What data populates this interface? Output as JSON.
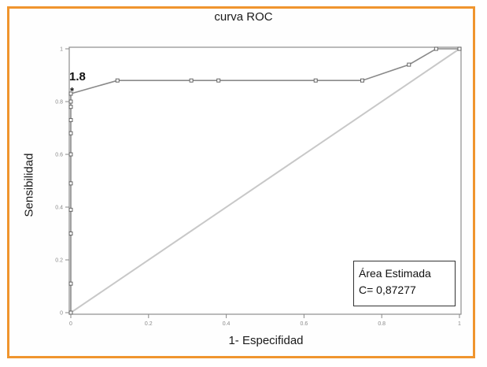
{
  "chart_data": {
    "type": "line",
    "title": "curva ROC",
    "xlabel": "1- Especifidad",
    "ylabel": "Sensibilidad",
    "xlim": [
      0,
      1
    ],
    "ylim": [
      0,
      1
    ],
    "x_ticks": [
      "0",
      "0.2",
      "0.4",
      "0.6",
      "0.8",
      "1"
    ],
    "y_ticks": [
      "0",
      "0.2",
      "0.4",
      "0.6",
      "0.8",
      "1"
    ],
    "series": [
      {
        "x": [
          0,
          0,
          0,
          0,
          0,
          0,
          0,
          0,
          0,
          0,
          0,
          0.12,
          0.31,
          0.38,
          0.63,
          0.75,
          0.87,
          0.94,
          1
        ],
        "y": [
          0,
          0.11,
          0.3,
          0.39,
          0.49,
          0.6,
          0.68,
          0.73,
          0.78,
          0.8,
          0.83,
          0.88,
          0.88,
          0.88,
          0.88,
          0.88,
          0.94,
          1,
          1
        ],
        "marker": "square",
        "color": "#8a8a8a"
      }
    ],
    "reference_line": {
      "x": [
        0,
        1
      ],
      "y": [
        0,
        1
      ],
      "color": "#c8c8c8"
    },
    "annotations": [
      {
        "text": "1.8",
        "x": 0,
        "y": 0.83
      },
      {
        "text": "*",
        "x": 0,
        "y": 0.83
      }
    ],
    "textbox": {
      "lines": [
        "Área Estimada",
        "C= 0,87277"
      ]
    },
    "grid": false
  }
}
